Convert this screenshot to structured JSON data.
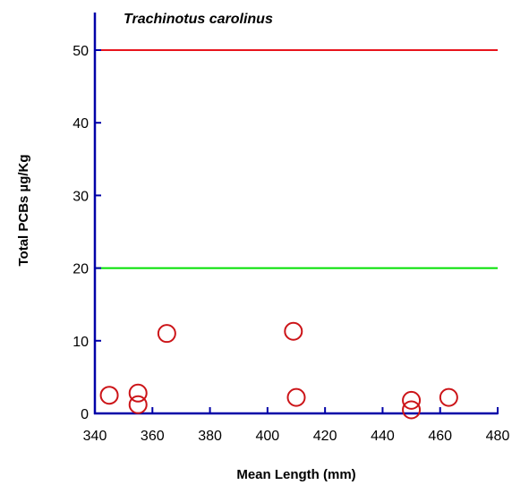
{
  "chart_data": {
    "type": "scatter",
    "title": "Trachinotus carolinus",
    "xlabel": "Mean Length (mm)",
    "ylabel": "Total PCBs µg/Kg",
    "xlim": [
      340,
      480
    ],
    "ylim": [
      0,
      55
    ],
    "xticks": [
      340,
      360,
      380,
      400,
      420,
      440,
      460,
      480
    ],
    "yticks": [
      0,
      10,
      20,
      30,
      40,
      50
    ],
    "grid": false,
    "series": [
      {
        "points": [
          {
            "x": 345,
            "y": 2.5
          },
          {
            "x": 355,
            "y": 2.8
          },
          {
            "x": 355,
            "y": 1.2
          },
          {
            "x": 365,
            "y": 11.0
          },
          {
            "x": 409,
            "y": 11.3
          },
          {
            "x": 410,
            "y": 2.2
          },
          {
            "x": 450,
            "y": 1.8
          },
          {
            "x": 450,
            "y": 0.5
          },
          {
            "x": 463,
            "y": 2.2
          }
        ]
      }
    ],
    "reference_lines": [
      {
        "y": 50,
        "color": "#e8141c"
      },
      {
        "y": 20,
        "color": "#00e000"
      }
    ],
    "colors": {
      "axis": "#0000a8",
      "marker": "#cc1418"
    }
  }
}
